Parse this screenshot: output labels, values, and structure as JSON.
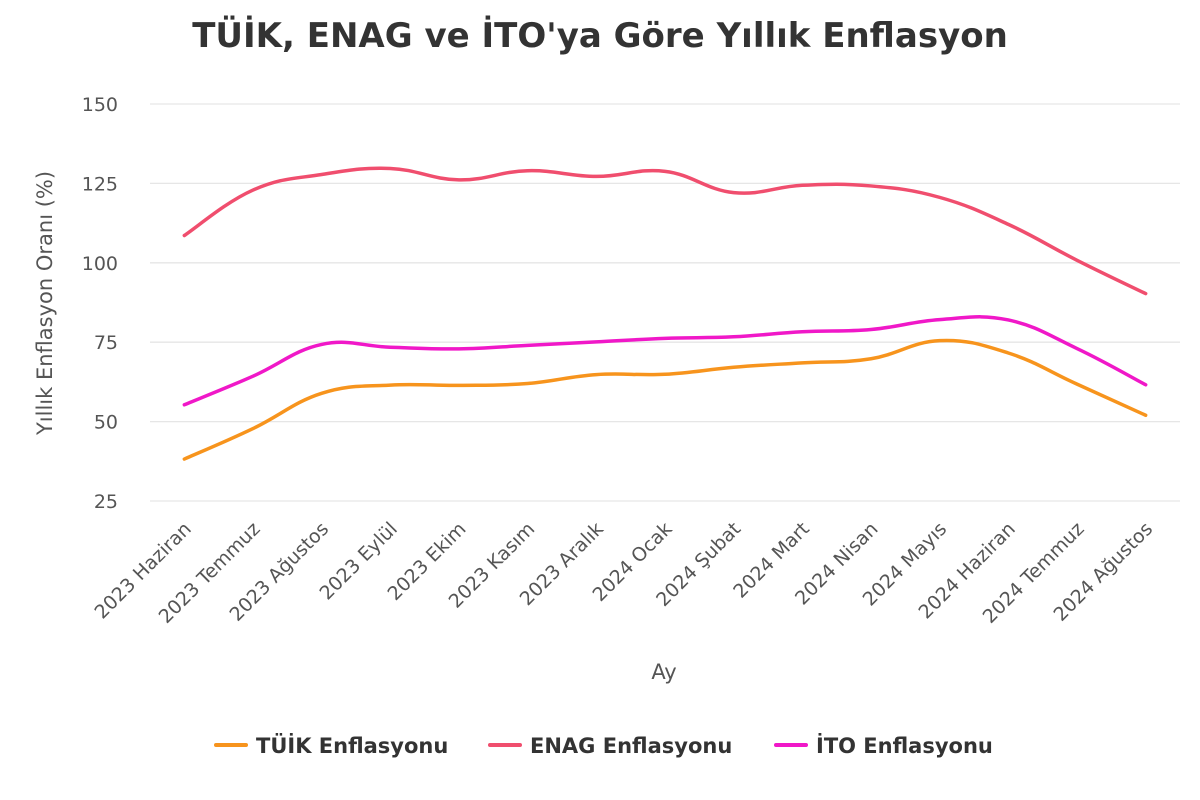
{
  "chart_data": {
    "type": "line",
    "title": "TÜİK, ENAG ve İTO'ya Göre Yıllık Enflasyon",
    "xlabel": "Ay",
    "ylabel": "Yıllık Enflasyon Oranı (%)",
    "ylim": [
      25,
      150
    ],
    "yticks": [
      25,
      50,
      75,
      100,
      125,
      150
    ],
    "ytick_labels": [
      "25",
      "50",
      "75",
      "100",
      "125",
      "150"
    ],
    "grid": true,
    "legend_position": "bottom",
    "categories": [
      "2023 Haziran",
      "2023 Temmuz",
      "2023 Ağustos",
      "2023 Eylül",
      "2023 Ekim",
      "2023 Kasım",
      "2023 Aralık",
      "2024 Ocak",
      "2024 Şubat",
      "2024 Mart",
      "2024 Nisan",
      "2024 Mayıs",
      "2024 Haziran",
      "2024 Temmuz",
      "2024 Ağustos"
    ],
    "series": [
      {
        "name": "TÜİK Enflasyonu",
        "color": "#f7941d",
        "values": [
          38.2,
          47.8,
          58.9,
          61.5,
          61.4,
          62.0,
          64.8,
          64.9,
          67.1,
          68.5,
          69.8,
          75.5,
          71.6,
          61.8,
          52.0
        ]
      },
      {
        "name": "ENAG Enflasyonu",
        "color": "#f04e6e",
        "values": [
          108.6,
          122.9,
          127.8,
          129.7,
          126.1,
          129.0,
          127.2,
          128.8,
          122.1,
          124.4,
          124.2,
          120.6,
          112.1,
          100.8,
          90.3
        ]
      },
      {
        "name": "İTO Enflasyonu",
        "color": "#f018c8",
        "values": [
          55.3,
          64.3,
          74.3,
          73.4,
          72.9,
          74.0,
          75.1,
          76.2,
          76.7,
          78.3,
          79.0,
          82.1,
          82.0,
          73.0,
          61.6
        ]
      }
    ]
  }
}
